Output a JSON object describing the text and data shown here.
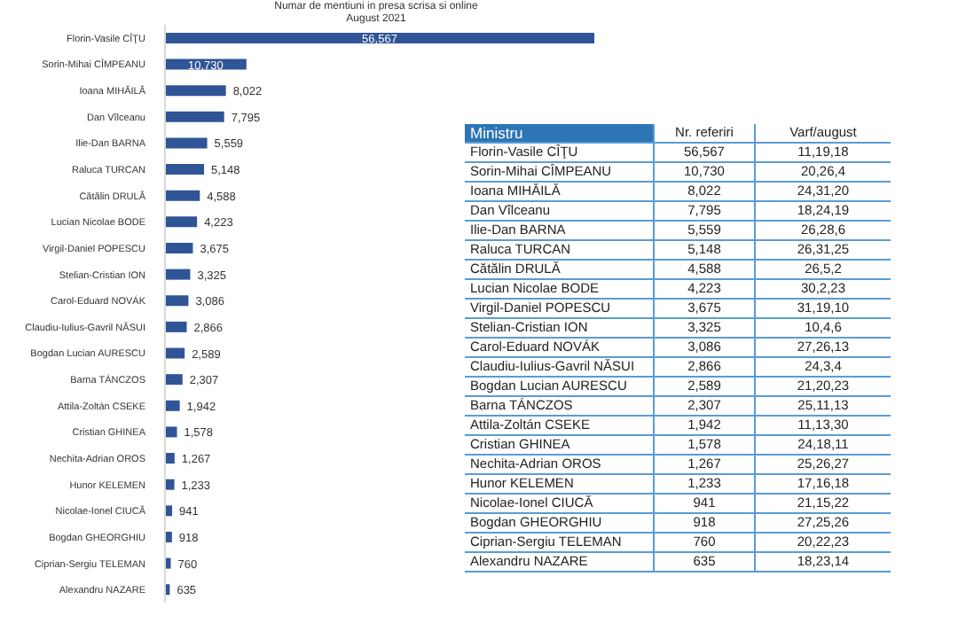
{
  "chart_data": [
    {
      "type": "bar",
      "orientation": "horizontal",
      "title": "Numar de mentiuni in presa scrisa si online",
      "subtitle": "August 2021",
      "color": "#2f5597",
      "categories": [
        "Florin-Vasile CÎŢU",
        "Sorin-Mihai CÎMPEANU",
        "Ioana MIHĂILĂ",
        "Dan Vîlceanu",
        "Ilie-Dan BARNA",
        "Raluca TURCAN",
        "Cătălin DRULĂ",
        "Lucian Nicolae BODE",
        "Virgil-Daniel POPESCU",
        "Stelian-Cristian ION",
        "Carol-Eduard NOVÁK",
        "Claudiu-Iulius-Gavril NĂSUI",
        "Bogdan Lucian AURESCU",
        "Barna TÁNCZOS",
        "Attila-Zoltán CSEKE",
        "Cristian GHINEA",
        "Nechita-Adrian OROS",
        "Hunor KELEMEN",
        "Nicolae-Ionel CIUCĂ",
        "Bogdan GHEORGHIU",
        "Ciprian-Sergiu TELEMAN",
        "Alexandru NAZARE"
      ],
      "values": [
        56567,
        10730,
        8022,
        7795,
        5559,
        5148,
        4588,
        4223,
        3675,
        3325,
        3086,
        2866,
        2589,
        2307,
        1942,
        1578,
        1267,
        1233,
        941,
        918,
        760,
        635
      ],
      "value_labels": [
        "56,567",
        "10,730",
        "8,022",
        "7,795",
        "5,559",
        "5,148",
        "4,588",
        "4,223",
        "3,675",
        "3,325",
        "3,086",
        "2,866",
        "2,589",
        "2,307",
        "1,942",
        "1,578",
        "1,267",
        "1,233",
        "941",
        "918",
        "760",
        "635"
      ]
    },
    {
      "type": "other",
      "categories": [
        "Florin-Vasile CÎŢU",
        "Sorin-Mihai CÎMPEANU",
        "Ioana MIHĂILĂ",
        "Dan Vîlceanu",
        "Ilie-Dan BARNA",
        "Raluca TURCAN",
        "Cătălin DRULĂ",
        "Lucian Nicolae BODE",
        "Virgil-Daniel POPESCU",
        "Stelian-Cristian ION",
        "Carol-Eduard NOVÁK",
        "Claudiu-Iulius-Gavril NĂSUI",
        "Bogdan Lucian AURESCU",
        "Barna TÁNCZOS",
        "Attila-Zoltán CSEKE",
        "Cristian GHINEA",
        "Nechita-Adrian OROS",
        "Hunor KELEMEN",
        "Nicolae-Ionel CIUCĂ",
        "Bogdan GHEORGHIU",
        "Ciprian-Sergiu TELEMAN",
        "Alexandru NAZARE"
      ],
      "value_labels": [
        "56,567",
        "10,730",
        "8,022",
        "7,795",
        "5,559",
        "5,148",
        "4,588",
        "4,223",
        "3,675",
        "3,325",
        "3,086",
        "2,866",
        "2,589",
        "2,307",
        "1,942",
        "1,578",
        "1,267",
        "1,233",
        "941",
        "918",
        "760",
        "635"
      ],
      "annotations": [
        "Ministru",
        "Nr. referiri",
        "Varf/august",
        "11,19,18",
        "20,26,4",
        "24,31,20",
        "18,24,19",
        "26,28,6",
        "26,31,25",
        "26,5,2",
        "30,2,23",
        "31,19,10",
        "10,4,6",
        "27,26,13",
        "24,3,4",
        "21,20,23",
        "25,11,13",
        "11,13,30",
        "24,18,11",
        "25,26,27",
        "17,16,18",
        "21,15,22",
        "27,25,26",
        "20,22,23",
        "18,23,14"
      ]
    }
  ]
}
